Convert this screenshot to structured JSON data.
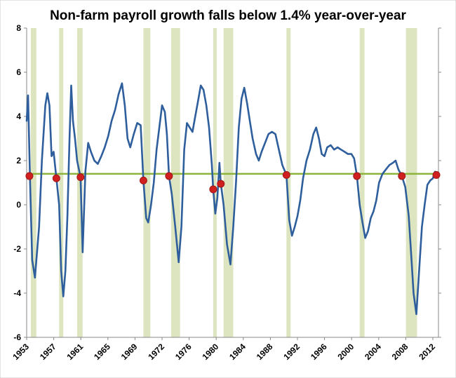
{
  "chart_data": {
    "type": "line",
    "title": "Non-farm payroll growth falls below 1.4% year-over-year",
    "xlabel": "",
    "ylabel": "",
    "xlim": [
      1953,
      2012.6
    ],
    "ylim": [
      -6,
      8
    ],
    "y_ticks": [
      8,
      6,
      4,
      2,
      0,
      -2,
      -4,
      -6
    ],
    "x_tick_labels": [
      "1953",
      "1957",
      "1961",
      "1965",
      "1969",
      "1972",
      "1976",
      "1980",
      "1984",
      "1988",
      "1992",
      "1996",
      "2000",
      "2004",
      "2008",
      "2012"
    ],
    "grid": "none",
    "colors": {
      "line": "#2e5e9c",
      "threshold": "#8cb43c",
      "recession": "#d6e0b4",
      "marker": "#d01f1f",
      "marker_edge": "#a01818",
      "axis": "#888888"
    },
    "threshold": 1.4,
    "recession_periods": [
      [
        1953.6,
        1954.4
      ],
      [
        1957.7,
        1958.3
      ],
      [
        1960.3,
        1961.1
      ],
      [
        1969.9,
        1970.9
      ],
      [
        1973.9,
        1975.2
      ],
      [
        1980.0,
        1980.5
      ],
      [
        1981.5,
        1982.9
      ],
      [
        1990.6,
        1991.2
      ],
      [
        2001.2,
        2001.9
      ],
      [
        2007.9,
        2009.5
      ]
    ],
    "signal_points": [
      {
        "x": 1953.4,
        "y": 1.3
      },
      {
        "x": 1957.3,
        "y": 1.2
      },
      {
        "x": 1960.8,
        "y": 1.25
      },
      {
        "x": 1969.9,
        "y": 1.1
      },
      {
        "x": 1973.6,
        "y": 1.3
      },
      {
        "x": 1980.0,
        "y": 0.7
      },
      {
        "x": 1981.1,
        "y": 0.95
      },
      {
        "x": 1990.6,
        "y": 1.35
      },
      {
        "x": 2000.8,
        "y": 1.3
      },
      {
        "x": 2007.3,
        "y": 1.3
      },
      {
        "x": 2012.3,
        "y": 1.35
      }
    ],
    "series": [
      {
        "values": [
          [
            1953.0,
            3.8
          ],
          [
            1953.2,
            4.95
          ],
          [
            1953.5,
            1.0
          ],
          [
            1953.8,
            -2.5
          ],
          [
            1954.2,
            -3.3
          ],
          [
            1954.8,
            -1.0
          ],
          [
            1955.2,
            2.0
          ],
          [
            1955.7,
            4.5
          ],
          [
            1956.0,
            5.05
          ],
          [
            1956.3,
            4.5
          ],
          [
            1956.6,
            2.2
          ],
          [
            1956.9,
            2.4
          ],
          [
            1957.3,
            1.2
          ],
          [
            1957.7,
            0.0
          ],
          [
            1958.0,
            -3.0
          ],
          [
            1958.3,
            -4.15
          ],
          [
            1958.6,
            -3.0
          ],
          [
            1958.9,
            -0.5
          ],
          [
            1959.2,
            3.0
          ],
          [
            1959.45,
            5.4
          ],
          [
            1959.7,
            3.8
          ],
          [
            1960.0,
            3.0
          ],
          [
            1960.3,
            2.0
          ],
          [
            1960.8,
            1.25
          ],
          [
            1961.1,
            -2.15
          ],
          [
            1961.5,
            1.5
          ],
          [
            1961.9,
            2.8
          ],
          [
            1962.3,
            2.4
          ],
          [
            1962.8,
            2.0
          ],
          [
            1963.3,
            1.85
          ],
          [
            1963.8,
            2.2
          ],
          [
            1964.3,
            2.6
          ],
          [
            1964.8,
            3.1
          ],
          [
            1965.3,
            3.8
          ],
          [
            1965.8,
            4.3
          ],
          [
            1966.3,
            5.0
          ],
          [
            1966.8,
            5.5
          ],
          [
            1967.2,
            4.5
          ],
          [
            1967.6,
            3.0
          ],
          [
            1968.0,
            2.6
          ],
          [
            1968.5,
            3.2
          ],
          [
            1969.0,
            3.7
          ],
          [
            1969.5,
            3.6
          ],
          [
            1969.9,
            1.1
          ],
          [
            1970.3,
            -0.6
          ],
          [
            1970.6,
            -0.8
          ],
          [
            1971.0,
            0.0
          ],
          [
            1971.4,
            1.0
          ],
          [
            1971.8,
            2.5
          ],
          [
            1972.2,
            3.5
          ],
          [
            1972.6,
            4.5
          ],
          [
            1973.0,
            4.2
          ],
          [
            1973.3,
            3.2
          ],
          [
            1973.6,
            1.3
          ],
          [
            1974.0,
            0.5
          ],
          [
            1974.5,
            -1.0
          ],
          [
            1975.0,
            -2.6
          ],
          [
            1975.4,
            -1.0
          ],
          [
            1975.8,
            2.5
          ],
          [
            1976.2,
            3.7
          ],
          [
            1976.6,
            3.5
          ],
          [
            1977.0,
            3.3
          ],
          [
            1977.4,
            4.0
          ],
          [
            1977.8,
            4.7
          ],
          [
            1978.2,
            5.4
          ],
          [
            1978.6,
            5.2
          ],
          [
            1979.0,
            4.5
          ],
          [
            1979.4,
            3.5
          ],
          [
            1979.8,
            1.8
          ],
          [
            1980.0,
            0.7
          ],
          [
            1980.3,
            -0.4
          ],
          [
            1980.6,
            0.3
          ],
          [
            1980.9,
            1.9
          ],
          [
            1981.1,
            0.95
          ],
          [
            1981.5,
            0.0
          ],
          [
            1982.0,
            -1.8
          ],
          [
            1982.5,
            -2.7
          ],
          [
            1982.9,
            -1.0
          ],
          [
            1983.3,
            1.0
          ],
          [
            1983.7,
            3.5
          ],
          [
            1984.1,
            4.8
          ],
          [
            1984.5,
            5.3
          ],
          [
            1984.9,
            4.6
          ],
          [
            1985.3,
            3.8
          ],
          [
            1985.7,
            3.0
          ],
          [
            1986.2,
            2.3
          ],
          [
            1986.6,
            2.0
          ],
          [
            1987.0,
            2.4
          ],
          [
            1987.5,
            2.8
          ],
          [
            1988.0,
            3.2
          ],
          [
            1988.5,
            3.3
          ],
          [
            1989.0,
            3.2
          ],
          [
            1989.5,
            2.5
          ],
          [
            1990.0,
            1.8
          ],
          [
            1990.6,
            1.35
          ],
          [
            1991.0,
            -0.7
          ],
          [
            1991.4,
            -1.4
          ],
          [
            1991.8,
            -1.0
          ],
          [
            1992.2,
            -0.5
          ],
          [
            1992.6,
            0.2
          ],
          [
            1993.0,
            1.2
          ],
          [
            1993.5,
            2.0
          ],
          [
            1994.0,
            2.5
          ],
          [
            1994.5,
            3.2
          ],
          [
            1994.9,
            3.5
          ],
          [
            1995.3,
            3.0
          ],
          [
            1995.7,
            2.3
          ],
          [
            1996.1,
            2.2
          ],
          [
            1996.5,
            2.6
          ],
          [
            1997.0,
            2.7
          ],
          [
            1997.5,
            2.5
          ],
          [
            1998.0,
            2.6
          ],
          [
            1998.5,
            2.5
          ],
          [
            1999.0,
            2.4
          ],
          [
            1999.5,
            2.3
          ],
          [
            2000.0,
            2.3
          ],
          [
            2000.4,
            2.1
          ],
          [
            2000.8,
            1.3
          ],
          [
            2001.2,
            0.0
          ],
          [
            2001.6,
            -0.8
          ],
          [
            2002.0,
            -1.5
          ],
          [
            2002.4,
            -1.2
          ],
          [
            2002.8,
            -0.6
          ],
          [
            2003.2,
            -0.3
          ],
          [
            2003.6,
            0.2
          ],
          [
            2004.0,
            1.0
          ],
          [
            2004.5,
            1.4
          ],
          [
            2005.0,
            1.6
          ],
          [
            2005.5,
            1.8
          ],
          [
            2006.0,
            1.9
          ],
          [
            2006.4,
            2.0
          ],
          [
            2006.8,
            1.6
          ],
          [
            2007.3,
            1.3
          ],
          [
            2007.8,
            0.8
          ],
          [
            2008.3,
            -0.5
          ],
          [
            2008.7,
            -2.5
          ],
          [
            2009.0,
            -4.0
          ],
          [
            2009.4,
            -4.95
          ],
          [
            2009.8,
            -3.0
          ],
          [
            2010.2,
            -1.0
          ],
          [
            2010.6,
            0.0
          ],
          [
            2011.0,
            0.9
          ],
          [
            2011.4,
            1.1
          ],
          [
            2011.8,
            1.2
          ],
          [
            2012.1,
            1.5
          ],
          [
            2012.4,
            1.4
          ]
        ]
      }
    ]
  }
}
